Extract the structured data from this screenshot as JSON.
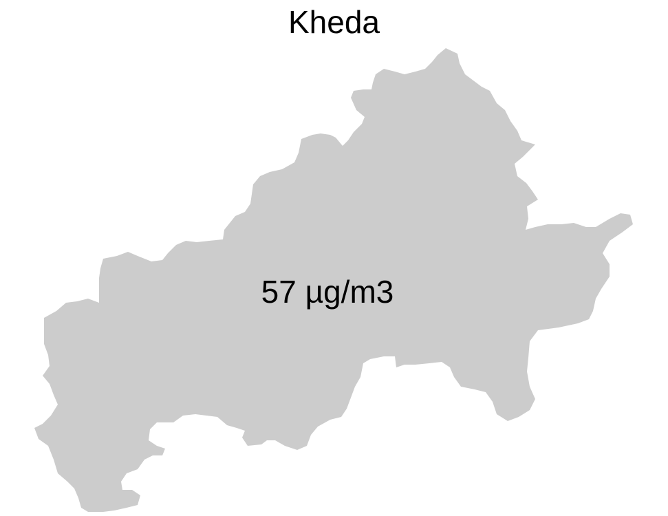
{
  "map": {
    "title": "Kheda",
    "region_value": "57 µg/m3",
    "region_fill_color": "#cccccc",
    "background_color": "#ffffff"
  }
}
